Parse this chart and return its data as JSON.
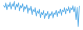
{
  "values": [
    100,
    95,
    108,
    88,
    103,
    97,
    110,
    90,
    105,
    98,
    112,
    88,
    104,
    96,
    108,
    85,
    100,
    93,
    105,
    82,
    97,
    90,
    102,
    78,
    93,
    86,
    98,
    74,
    89,
    82,
    94,
    70,
    85,
    78,
    90,
    66,
    81,
    74,
    86,
    63,
    78,
    72,
    84,
    62,
    77,
    71,
    83,
    64,
    79,
    74,
    86,
    68,
    83,
    78,
    90,
    72,
    87,
    82,
    94,
    76,
    91,
    85,
    97,
    79,
    94,
    88,
    100,
    82,
    97,
    60,
    95,
    40,
    98
  ],
  "line_color": "#5aaee8",
  "linewidth": 0.8,
  "background_color": "#ffffff",
  "ylim_min": 30,
  "ylim_max": 118
}
